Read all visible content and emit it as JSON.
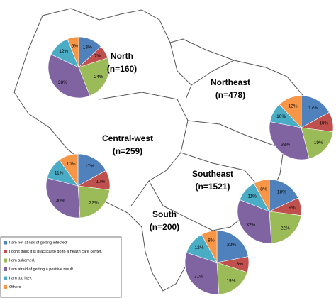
{
  "legend": {
    "items": [
      {
        "name": "I am not at risk of getting infected.",
        "color": "#4f81bd"
      },
      {
        "name": "I don't think it is practical to go to a health care center.",
        "color": "#c0504d"
      },
      {
        "name": "I am ashamed.",
        "color": "#9bbb59"
      },
      {
        "name": "I am afraid of getting a positive result.",
        "color": "#8064a2"
      },
      {
        "name": "I am too lazy.",
        "color": "#4bacc6"
      },
      {
        "name": "Others",
        "color": "#f79646"
      }
    ]
  },
  "chart_data": [
    {
      "type": "pie",
      "title": "North",
      "subtitle": "(n=160)",
      "values": [
        13,
        7,
        24,
        38,
        12,
        6
      ],
      "value_labels": [
        "13%",
        "7%",
        "24%",
        "38%",
        "12%",
        "6%"
      ]
    },
    {
      "type": "pie",
      "title": "Northeast",
      "subtitle": "(n=478)",
      "values": [
        17,
        10,
        19,
        32,
        10,
        12
      ],
      "value_labels": [
        "17%",
        "10%",
        "19%",
        "32%",
        "10%",
        "12%"
      ]
    },
    {
      "type": "pie",
      "title": "Central-west",
      "subtitle": "(n=259)",
      "values": [
        17,
        10,
        22,
        30,
        11,
        10
      ],
      "value_labels": [
        "17%",
        "10%",
        "22%",
        "30%",
        "11%",
        "10%"
      ]
    },
    {
      "type": "pie",
      "title": "Southeast",
      "subtitle": "(n=1521)",
      "values": [
        18,
        9,
        22,
        32,
        11,
        8
      ],
      "value_labels": [
        "18%",
        "9%",
        "22%",
        "32%",
        "11%",
        "8%"
      ]
    },
    {
      "type": "pie",
      "title": "South",
      "subtitle": "(n=200)",
      "values": [
        22,
        8,
        19,
        31,
        12,
        8
      ],
      "value_labels": [
        "22%",
        "8%",
        "19%",
        "31%",
        "12%",
        "8%"
      ]
    }
  ]
}
